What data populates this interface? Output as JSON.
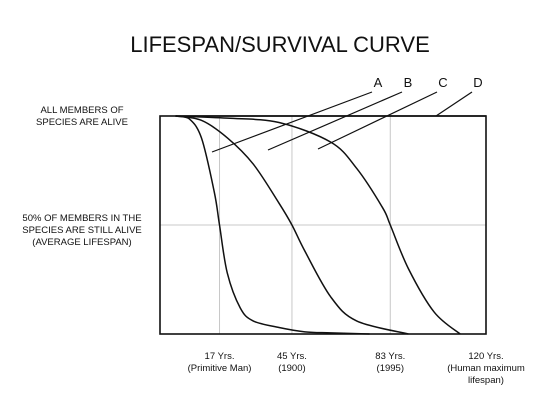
{
  "chart_data": {
    "type": "line",
    "title": "LIFESPAN/SURVIVAL CURVE",
    "y_labels": [
      {
        "lines": [
          "ALL MEMBERS OF",
          "SPECIES ARE ALIVE"
        ],
        "value": 100
      },
      {
        "lines": [
          "50% OF MEMBERS IN THE",
          "SPECIES ARE STILL ALIVE",
          "(AVERAGE LIFESPAN)"
        ],
        "value": 50
      }
    ],
    "x_ticks": [
      {
        "value": 17,
        "lines": [
          "17 Yrs.",
          "(Primitive Man)"
        ]
      },
      {
        "value": 45,
        "lines": [
          "45 Yrs.",
          "(1900)"
        ]
      },
      {
        "value": 83,
        "lines": [
          "83 Yrs.",
          "(1995)"
        ]
      },
      {
        "value": 120,
        "lines": [
          "120 Yrs.",
          "(Human maximum",
          "lifespan)"
        ]
      }
    ],
    "xlim": [
      -6,
      120
    ],
    "ylim": [
      0,
      100
    ],
    "grid": true,
    "series": [
      {
        "name": "A",
        "x": [
          0,
          5,
          10,
          15,
          17,
          20,
          25,
          30,
          40,
          50,
          60,
          75
        ],
        "y": [
          100,
          99,
          90,
          65,
          50,
          28,
          12,
          6,
          3,
          1,
          0.5,
          0
        ]
      },
      {
        "name": "B",
        "x": [
          0,
          10,
          20,
          30,
          40,
          45,
          50,
          60,
          70,
          90
        ],
        "y": [
          100,
          98,
          90,
          78,
          60,
          50,
          38,
          17,
          6,
          0
        ]
      },
      {
        "name": "C",
        "x": [
          0,
          20,
          40,
          60,
          70,
          80,
          83,
          90,
          100,
          110
        ],
        "y": [
          100,
          99,
          97,
          88,
          76,
          58,
          50,
          30,
          10,
          0
        ]
      },
      {
        "name": "D",
        "x": [
          0,
          50,
          80,
          100,
          110,
          116,
          120
        ],
        "y": [
          100,
          100,
          100,
          100,
          100,
          100,
          100
        ]
      }
    ]
  }
}
